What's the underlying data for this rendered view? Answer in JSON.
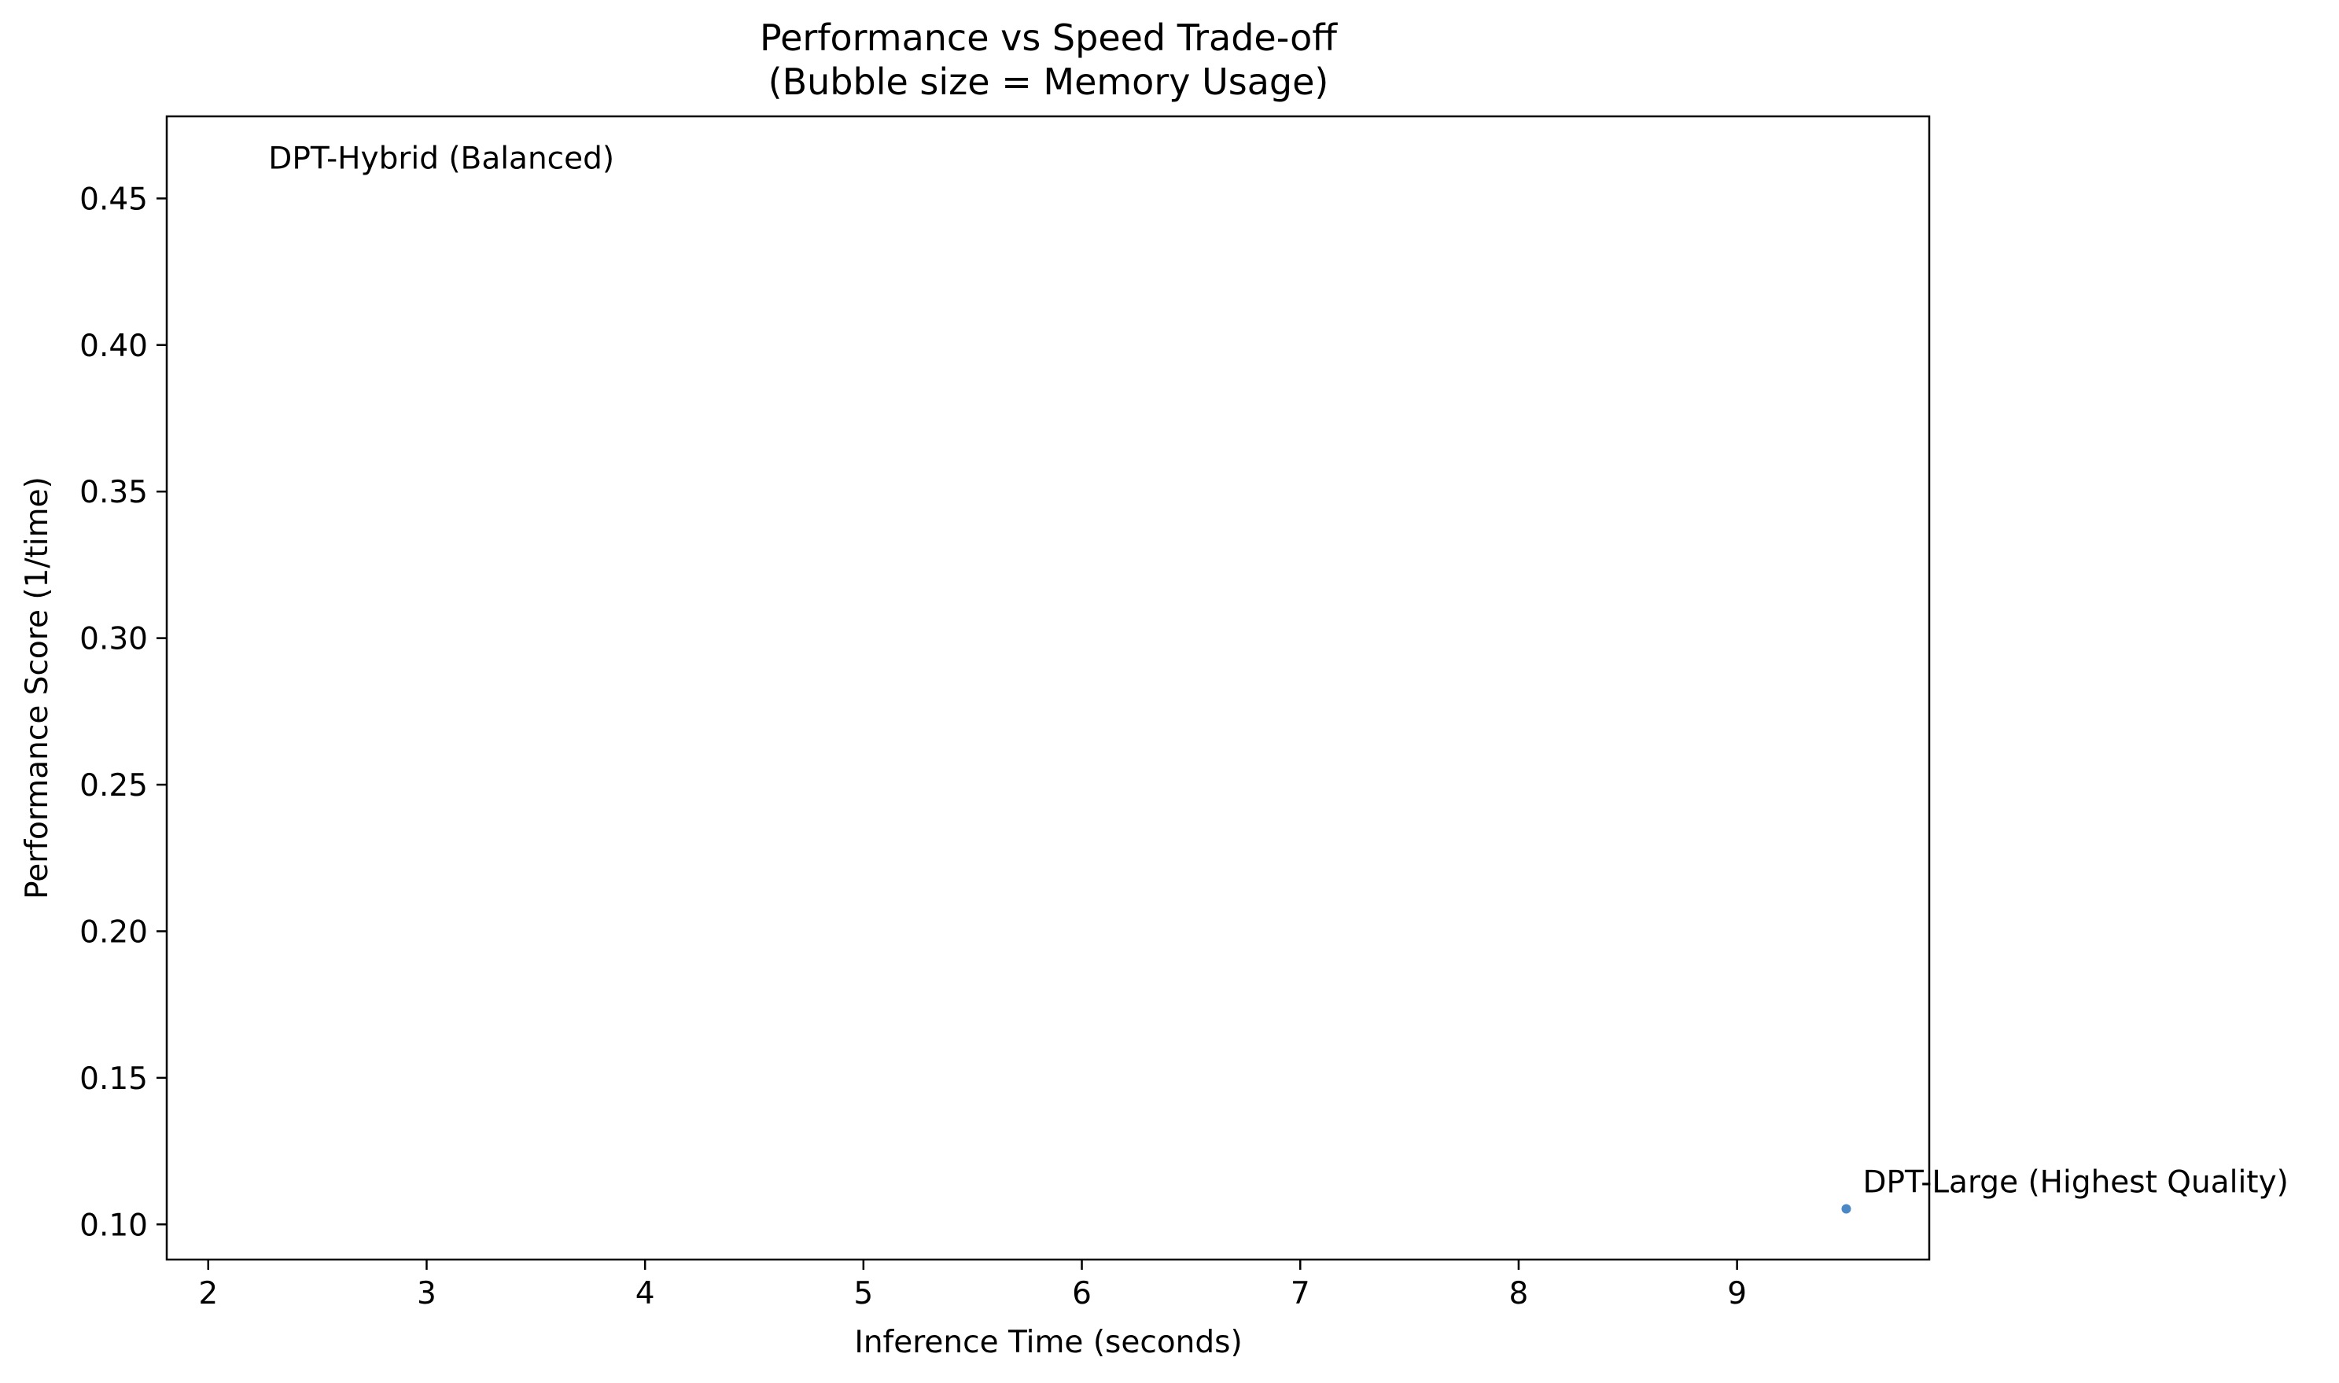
{
  "chart_data": {
    "type": "scatter",
    "title": "Performance vs Speed Trade-off",
    "subtitle": "(Bubble size = Memory Usage)",
    "xlabel": "Inference Time (seconds)",
    "ylabel": "Performance Score (1/time)",
    "xlim": [
      1.81,
      9.88
    ],
    "ylim": [
      0.088,
      0.478
    ],
    "xticks": [
      2,
      3,
      4,
      5,
      6,
      7,
      8,
      9
    ],
    "yticks": [
      0.1,
      0.15,
      0.2,
      0.25,
      0.3,
      0.35,
      0.4,
      0.45
    ],
    "grid": false,
    "legend": false,
    "colors": {
      "point": "#4a88c6",
      "axes": "#000000"
    },
    "points": [
      {
        "label": "DPT-Hybrid (Balanced)",
        "x": 2.2,
        "y": 0.4545,
        "visible": false
      },
      {
        "label": "DPT-Large (Highest Quality)",
        "x": 9.5,
        "y": 0.1053,
        "visible": true
      }
    ]
  }
}
